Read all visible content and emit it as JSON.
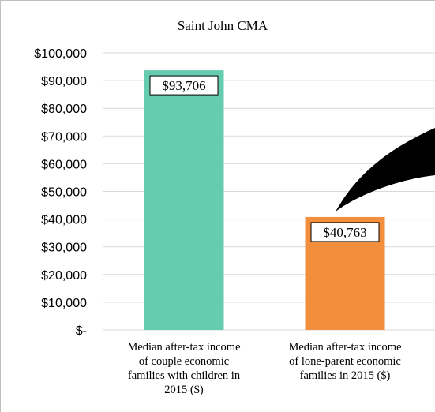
{
  "chart_data": {
    "type": "bar",
    "title": "Saint John CMA",
    "categories": [
      [
        "Median after-tax income",
        "of couple economic",
        "families with children in",
        "2015 ($)"
      ],
      [
        "Median after-tax income",
        "of lone-parent economic",
        "families in 2015 ($)"
      ]
    ],
    "values": [
      93706,
      40763
    ],
    "data_labels": [
      "$93,706",
      "$40,763"
    ],
    "bar_colors": [
      "#66ccb0",
      "#f28e3c"
    ],
    "y_ticks": [
      "$-",
      "$10,000",
      "$20,000",
      "$30,000",
      "$40,000",
      "$50,000",
      "$60,000",
      "$70,000",
      "$80,000",
      "$90,000",
      "$100,000"
    ],
    "ylim": [
      0,
      100000
    ],
    "grid": true,
    "legend": "none",
    "annotation": "black curved arrow shape pointing to the second bar"
  }
}
